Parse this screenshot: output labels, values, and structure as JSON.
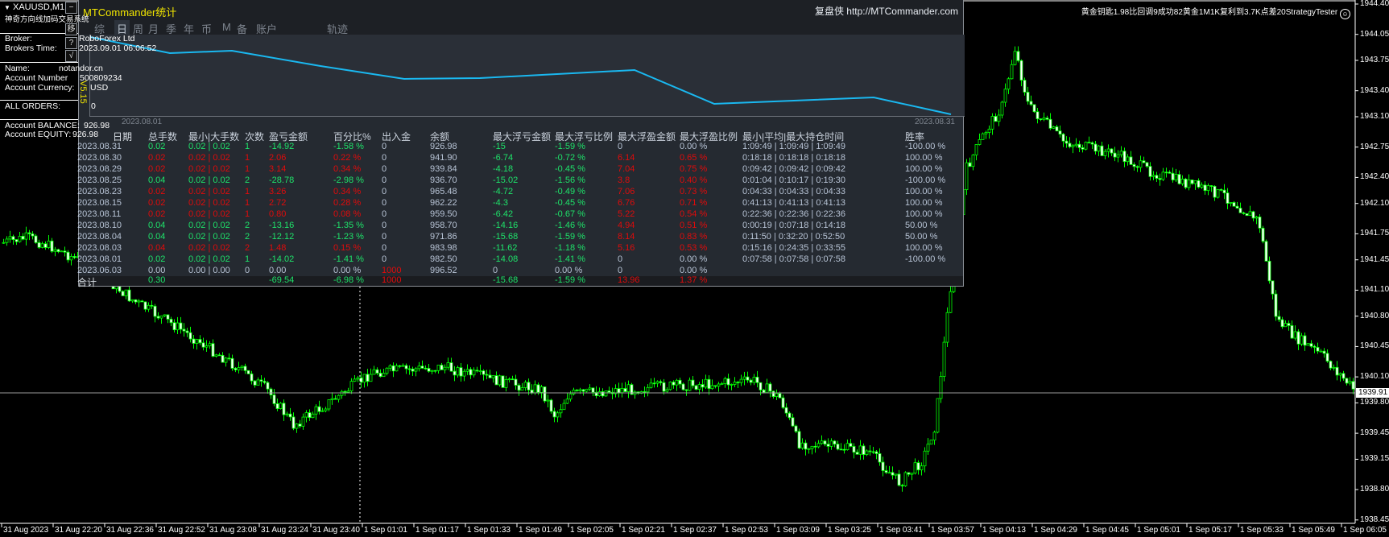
{
  "window": {
    "symbol_title": "XAUUSD,M1",
    "subtitle": "神奇方向线加码交易系统"
  },
  "top_note": "黄金钥匙1.98比回调9成功82黄金1M1K复利到3.7K点差20StrategyTester",
  "smiley_icon": "smiley-face-icon",
  "side_buttons": [
    "−",
    "移",
    "?",
    "√"
  ],
  "version": "V5.15",
  "info": {
    "broker_label": "Broker:",
    "broker": "RoboForex Ltd",
    "time_label": "Brokers Time:",
    "time": "2023.09.01 06:06:52",
    "name_label": "Name:",
    "name": "notandor.cn",
    "number_label": "Account Number",
    "number": "500809234",
    "currency_label": "Account Currency:",
    "currency": "USD",
    "orders_label": "ALL ORDERS:",
    "orders": "0",
    "balance_label": "Account BALANCE:",
    "balance": "926.98",
    "equity_label": "Account EQUITY:",
    "equity": "926.98"
  },
  "panel": {
    "title": "MTCommander统计",
    "site": "复盘侠 http://MTCommander.com",
    "tabs": [
      "综",
      "日",
      "周",
      "月",
      "季",
      "年",
      "币",
      "M",
      "备",
      "账户",
      "轨迹"
    ],
    "active_tab": "日",
    "equity_curve": {
      "start_date": "2023.08.01",
      "end_date": "2023.08.31",
      "line_color": "#1ab8f0"
    },
    "colors": {
      "loss": "#1ee36a",
      "profit": "#e00b0b",
      "neutral": "#b8c4d6"
    },
    "headers": [
      "日期",
      "总手数",
      "最小|大手数",
      "次数",
      "盈亏金额",
      "百分比%",
      "出入金",
      "余额",
      "最大浮亏金额",
      "最大浮亏比例",
      "最大浮盈金额",
      "最大浮盈比例",
      "最小|平均|最大持仓时间",
      "胜率"
    ],
    "rows": [
      {
        "c": [
          "2023.08.31",
          "0.02",
          "0.02 | 0.02",
          "1",
          "-14.92",
          "-1.58 %",
          "0",
          "926.98",
          "-15",
          "-1.59 %",
          "0",
          "0.00 %",
          "1:09:49 | 1:09:49 | 1:09:49",
          "-100.00 %"
        ],
        "tone": [
          "n",
          "l",
          "l",
          "l",
          "l",
          "l",
          "n",
          "n",
          "l",
          "l",
          "n",
          "n",
          "n",
          "n"
        ]
      },
      {
        "c": [
          "2023.08.30",
          "0.02",
          "0.02 | 0.02",
          "1",
          "2.06",
          "0.22 %",
          "0",
          "941.90",
          "-6.74",
          "-0.72 %",
          "6.14",
          "0.65 %",
          "0:18:18 | 0:18:18 | 0:18:18",
          "100.00 %"
        ],
        "tone": [
          "n",
          "p",
          "p",
          "p",
          "p",
          "p",
          "n",
          "n",
          "l",
          "l",
          "p",
          "p",
          "n",
          "n"
        ]
      },
      {
        "c": [
          "2023.08.29",
          "0.02",
          "0.02 | 0.02",
          "1",
          "3.14",
          "0.34 %",
          "0",
          "939.84",
          "-4.18",
          "-0.45 %",
          "7.04",
          "0.75 %",
          "0:09:42 | 0:09:42 | 0:09:42",
          "100.00 %"
        ],
        "tone": [
          "n",
          "p",
          "p",
          "p",
          "p",
          "p",
          "n",
          "n",
          "l",
          "l",
          "p",
          "p",
          "n",
          "n"
        ]
      },
      {
        "c": [
          "2023.08.25",
          "0.04",
          "0.02 | 0.02",
          "2",
          "-28.78",
          "-2.98 %",
          "0",
          "936.70",
          "-15.02",
          "-1.56 %",
          "3.8",
          "0.40 %",
          "0:01:04 | 0:10:17 | 0:19:30",
          "-100.00 %"
        ],
        "tone": [
          "n",
          "l",
          "l",
          "l",
          "l",
          "l",
          "n",
          "n",
          "l",
          "l",
          "p",
          "p",
          "n",
          "n"
        ]
      },
      {
        "c": [
          "2023.08.23",
          "0.02",
          "0.02 | 0.02",
          "1",
          "3.26",
          "0.34 %",
          "0",
          "965.48",
          "-4.72",
          "-0.49 %",
          "7.06",
          "0.73 %",
          "0:04:33 | 0:04:33 | 0:04:33",
          "100.00 %"
        ],
        "tone": [
          "n",
          "p",
          "p",
          "p",
          "p",
          "p",
          "n",
          "n",
          "l",
          "l",
          "p",
          "p",
          "n",
          "n"
        ]
      },
      {
        "c": [
          "2023.08.15",
          "0.02",
          "0.02 | 0.02",
          "1",
          "2.72",
          "0.28 %",
          "0",
          "962.22",
          "-4.3",
          "-0.45 %",
          "6.76",
          "0.71 %",
          "0:41:13 | 0:41:13 | 0:41:13",
          "100.00 %"
        ],
        "tone": [
          "n",
          "p",
          "p",
          "p",
          "p",
          "p",
          "n",
          "n",
          "l",
          "l",
          "p",
          "p",
          "n",
          "n"
        ]
      },
      {
        "c": [
          "2023.08.11",
          "0.02",
          "0.02 | 0.02",
          "1",
          "0.80",
          "0.08 %",
          "0",
          "959.50",
          "-6.42",
          "-0.67 %",
          "5.22",
          "0.54 %",
          "0:22:36 | 0:22:36 | 0:22:36",
          "100.00 %"
        ],
        "tone": [
          "n",
          "p",
          "p",
          "p",
          "p",
          "p",
          "n",
          "n",
          "l",
          "l",
          "p",
          "p",
          "n",
          "n"
        ]
      },
      {
        "c": [
          "2023.08.10",
          "0.04",
          "0.02 | 0.02",
          "2",
          "-13.16",
          "-1.35 %",
          "0",
          "958.70",
          "-14.16",
          "-1.46 %",
          "4.94",
          "0.51 %",
          "0:00:19 | 0:07:18 | 0:14:18",
          "50.00 %"
        ],
        "tone": [
          "n",
          "l",
          "l",
          "l",
          "l",
          "l",
          "n",
          "n",
          "l",
          "l",
          "p",
          "p",
          "n",
          "n"
        ]
      },
      {
        "c": [
          "2023.08.04",
          "0.04",
          "0.02 | 0.02",
          "2",
          "-12.12",
          "-1.23 %",
          "0",
          "971.86",
          "-15.68",
          "-1.59 %",
          "8.14",
          "0.83 %",
          "0:11:50 | 0:32:20 | 0:52:50",
          "50.00 %"
        ],
        "tone": [
          "n",
          "l",
          "l",
          "l",
          "l",
          "l",
          "n",
          "n",
          "l",
          "l",
          "p",
          "p",
          "n",
          "n"
        ]
      },
      {
        "c": [
          "2023.08.03",
          "0.04",
          "0.02 | 0.02",
          "2",
          "1.48",
          "0.15 %",
          "0",
          "983.98",
          "-11.62",
          "-1.18 %",
          "5.16",
          "0.53 %",
          "0:15:16 | 0:24:35 | 0:33:55",
          "100.00 %"
        ],
        "tone": [
          "n",
          "p",
          "p",
          "p",
          "p",
          "p",
          "n",
          "n",
          "l",
          "l",
          "p",
          "p",
          "n",
          "n"
        ]
      },
      {
        "c": [
          "2023.08.01",
          "0.02",
          "0.02 | 0.02",
          "1",
          "-14.02",
          "-1.41 %",
          "0",
          "982.50",
          "-14.08",
          "-1.41 %",
          "0",
          "0.00 %",
          "0:07:58 | 0:07:58 | 0:07:58",
          "-100.00 %"
        ],
        "tone": [
          "n",
          "l",
          "l",
          "l",
          "l",
          "l",
          "n",
          "n",
          "l",
          "l",
          "n",
          "n",
          "n",
          "n"
        ]
      },
      {
        "c": [
          "2023.06.03",
          "0.00",
          "0.00 | 0.00",
          "0",
          "0.00",
          "0.00 %",
          "1000",
          "996.52",
          "0",
          "0.00 %",
          "0",
          "0.00 %",
          "",
          ""
        ],
        "tone": [
          "n",
          "n",
          "n",
          "n",
          "n",
          "n",
          "p",
          "n",
          "n",
          "n",
          "n",
          "n",
          "n",
          "n"
        ]
      }
    ],
    "total": {
      "c": [
        "合计",
        "0.30",
        "",
        "",
        "-69.54",
        "-6.98 %",
        "1000",
        "",
        "-15.68",
        "-1.59 %",
        "13.96",
        "1.37 %",
        "",
        ""
      ],
      "tone": [
        "n",
        "l",
        "n",
        "n",
        "l",
        "l",
        "p",
        "n",
        "l",
        "l",
        "p",
        "p",
        "n",
        "n"
      ]
    }
  },
  "price_axis": [
    "1944.40",
    "1944.05",
    "1943.75",
    "1943.40",
    "1943.10",
    "1942.75",
    "1942.40",
    "1942.10",
    "1941.75",
    "1941.45",
    "1941.10",
    "1940.80",
    "1940.45",
    "1940.10",
    "1939.80",
    "1939.45",
    "1939.15",
    "1938.80",
    "1938.45"
  ],
  "bid_price": "1939.91",
  "time_axis": [
    "31 Aug 2023",
    "31 Aug 22:20",
    "31 Aug 22:36",
    "31 Aug 22:52",
    "31 Aug 23:08",
    "31 Aug 23:24",
    "31 Aug 23:40",
    "1 Sep 01:01",
    "1 Sep 01:17",
    "1 Sep 01:33",
    "1 Sep 01:49",
    "1 Sep 02:05",
    "1 Sep 02:21",
    "1 Sep 02:37",
    "1 Sep 02:53",
    "1 Sep 03:09",
    "1 Sep 03:25",
    "1 Sep 03:41",
    "1 Sep 03:57",
    "1 Sep 04:13",
    "1 Sep 04:29",
    "1 Sep 04:45",
    "1 Sep 05:01",
    "1 Sep 05:17",
    "1 Sep 05:33",
    "1 Sep 05:49",
    "1 Sep 06:05"
  ],
  "candle_color": "#00ff00"
}
